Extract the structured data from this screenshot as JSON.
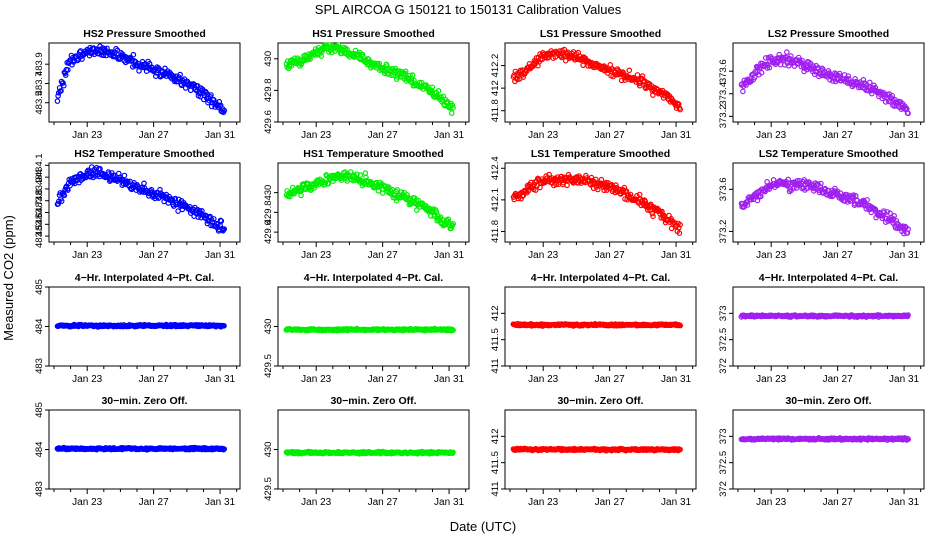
{
  "figure": {
    "title": "SPL   AIRCOA G   150121 to 150131   Calibration Values",
    "xlabel": "Date (UTC)",
    "ylabel": "Measured CO2 (ppm)"
  },
  "chart_data": [
    {
      "type": "scatter",
      "title": "HS2 Pressure Smoothed",
      "color": "#0000ff",
      "ylim": [
        483.3,
        484.12
      ],
      "yticks": [
        483.5,
        483.7,
        483.9
      ],
      "xticks": [
        "Jan 23",
        "Jan 27",
        "Jan 31"
      ],
      "x": [
        21.2,
        22,
        23.4,
        25,
        26.5,
        28,
        29.5,
        30.8,
        31.6
      ],
      "y": [
        483.57,
        483.93,
        484.06,
        483.98,
        483.87,
        483.79,
        483.66,
        483.48,
        483.34
      ]
    },
    {
      "type": "scatter",
      "title": "HS1 Pressure Smoothed",
      "color": "#00ee00",
      "ylim": [
        429.6,
        430.1
      ],
      "yticks": [
        429.6,
        429.8,
        430.0
      ],
      "xticks": [
        "Jan 23",
        "Jan 27",
        "Jan 31"
      ],
      "x": [
        21.2,
        22.5,
        24,
        25.5,
        27,
        28.5,
        30,
        31.6
      ],
      "y": [
        429.96,
        430.01,
        430.07,
        430.02,
        429.94,
        429.88,
        429.79,
        429.66
      ]
    },
    {
      "type": "scatter",
      "title": "LS1 Pressure Smoothed",
      "color": "#ff0000",
      "ylim": [
        411.7,
        412.4
      ],
      "yticks": [
        411.8,
        412.0,
        412.2
      ],
      "xticks": [
        "Jan 23",
        "Jan 27",
        "Jan 31"
      ],
      "x": [
        21.2,
        22.5,
        23.5,
        25,
        27,
        28.5,
        30,
        31.6
      ],
      "y": [
        412.08,
        412.22,
        412.32,
        412.28,
        412.15,
        412.08,
        411.98,
        411.78
      ]
    },
    {
      "type": "scatter",
      "title": "LS2 Pressure Smoothed",
      "color": "#a020f0",
      "ylim": [
        373.15,
        373.85
      ],
      "yticks": [
        373.2,
        373.4,
        373.6
      ],
      "xticks": [
        "Jan 23",
        "Jan 27",
        "Jan 31"
      ],
      "x": [
        21.2,
        22.5,
        23.5,
        25,
        26.5,
        28.5,
        30,
        31.6
      ],
      "y": [
        373.45,
        373.65,
        373.72,
        373.65,
        373.57,
        373.48,
        373.38,
        373.22
      ]
    },
    {
      "type": "scatter",
      "title": "HS2 Temperature Smoothed",
      "color": "#0000ff",
      "ylim": [
        483.45,
        484.12
      ],
      "yticks": [
        483.5,
        483.6,
        483.7,
        483.8,
        483.9,
        484.0,
        484.1
      ],
      "xticks": [
        "Jan 23",
        "Jan 27",
        "Jan 31"
      ],
      "x": [
        21.2,
        22,
        23.5,
        25,
        26.5,
        28,
        30,
        31.6
      ],
      "y": [
        483.78,
        483.96,
        484.05,
        483.98,
        483.88,
        483.8,
        483.68,
        483.52
      ]
    },
    {
      "type": "scatter",
      "title": "HS1 Temperature Smoothed",
      "color": "#00ee00",
      "ylim": [
        429.5,
        430.3
      ],
      "yticks": [
        429.6,
        429.8,
        430.0
      ],
      "xticks": [
        "Jan 23",
        "Jan 27",
        "Jan 31"
      ],
      "x": [
        21.2,
        23,
        25,
        27,
        29,
        31.6
      ],
      "y": [
        429.98,
        430.1,
        430.18,
        430.05,
        429.9,
        429.6
      ]
    },
    {
      "type": "scatter",
      "title": "LS1 Temperature Smoothed",
      "color": "#ff0000",
      "ylim": [
        411.7,
        412.45
      ],
      "yticks": [
        411.8,
        412.1,
        412.4
      ],
      "xticks": [
        "Jan 23",
        "Jan 27",
        "Jan 31"
      ],
      "x": [
        21.2,
        23,
        25,
        27,
        29,
        31.6
      ],
      "y": [
        412.12,
        412.28,
        412.3,
        412.22,
        412.08,
        411.8
      ]
    },
    {
      "type": "scatter",
      "title": "LS2 Temperature Smoothed",
      "color": "#a020f0",
      "ylim": [
        373.1,
        373.85
      ],
      "yticks": [
        373.2,
        373.6
      ],
      "xticks": [
        "Jan 23",
        "Jan 27",
        "Jan 31"
      ],
      "x": [
        21.2,
        23,
        25,
        27,
        29,
        31.6
      ],
      "y": [
        373.45,
        373.65,
        373.65,
        373.55,
        373.42,
        373.18
      ]
    },
    {
      "type": "scatter",
      "title": "4−Hr. Interpolated 4−Pt. Cal.",
      "color": "#0000ff",
      "ylim": [
        483.0,
        485.0
      ],
      "yticks": [
        483.0,
        484.0,
        485.0
      ],
      "xticks": [
        "Jan 23",
        "Jan 27",
        "Jan 31"
      ],
      "x": [
        21.2,
        31.6
      ],
      "y": [
        484.02,
        484.02
      ]
    },
    {
      "type": "scatter",
      "title": "4−Hr. Interpolated 4−Pt. Cal.",
      "color": "#00ee00",
      "ylim": [
        429.5,
        430.5
      ],
      "yticks": [
        429.5,
        430.0
      ],
      "xticks": [
        "Jan 23",
        "Jan 27",
        "Jan 31"
      ],
      "x": [
        21.2,
        31.6
      ],
      "y": [
        429.96,
        429.96
      ]
    },
    {
      "type": "scatter",
      "title": "4−Hr. Interpolated 4−Pt. Cal.",
      "color": "#ff0000",
      "ylim": [
        411.0,
        412.5
      ],
      "yticks": [
        411.0,
        411.5,
        412.0
      ],
      "xticks": [
        "Jan 23",
        "Jan 27",
        "Jan 31"
      ],
      "x": [
        21.2,
        31.6
      ],
      "y": [
        411.78,
        411.78
      ]
    },
    {
      "type": "scatter",
      "title": "4−Hr. Interpolated 4−Pt. Cal.",
      "color": "#a020f0",
      "ylim": [
        372.0,
        373.5
      ],
      "yticks": [
        372.0,
        372.5,
        373.0
      ],
      "xticks": [
        "Jan 23",
        "Jan 27",
        "Jan 31"
      ],
      "x": [
        21.2,
        31.6
      ],
      "y": [
        372.95,
        372.95
      ]
    },
    {
      "type": "scatter",
      "title": "30−min. Zero Off.",
      "color": "#0000ff",
      "ylim": [
        483.0,
        485.0
      ],
      "yticks": [
        483.0,
        484.0,
        485.0
      ],
      "xticks": [
        "Jan 23",
        "Jan 27",
        "Jan 31"
      ],
      "x": [
        21.2,
        31.6
      ],
      "y": [
        484.02,
        484.02
      ]
    },
    {
      "type": "scatter",
      "title": "30−min. Zero Off.",
      "color": "#00ee00",
      "ylim": [
        429.5,
        430.5
      ],
      "yticks": [
        429.5,
        430.0
      ],
      "xticks": [
        "Jan 23",
        "Jan 27",
        "Jan 31"
      ],
      "x": [
        21.2,
        31.6
      ],
      "y": [
        429.96,
        429.96
      ]
    },
    {
      "type": "scatter",
      "title": "30−min. Zero Off.",
      "color": "#ff0000",
      "ylim": [
        411.0,
        412.5
      ],
      "yticks": [
        411.0,
        411.5,
        412.0
      ],
      "xticks": [
        "Jan 23",
        "Jan 27",
        "Jan 31"
      ],
      "x": [
        21.2,
        31.6
      ],
      "y": [
        411.75,
        411.75
      ]
    },
    {
      "type": "scatter",
      "title": "30−min. Zero Off.",
      "color": "#a020f0",
      "ylim": [
        372.0,
        373.5
      ],
      "yticks": [
        372.0,
        372.5,
        373.0
      ],
      "xticks": [
        "Jan 23",
        "Jan 27",
        "Jan 31"
      ],
      "x": [
        21.2,
        31.6
      ],
      "y": [
        372.95,
        372.95
      ]
    }
  ]
}
